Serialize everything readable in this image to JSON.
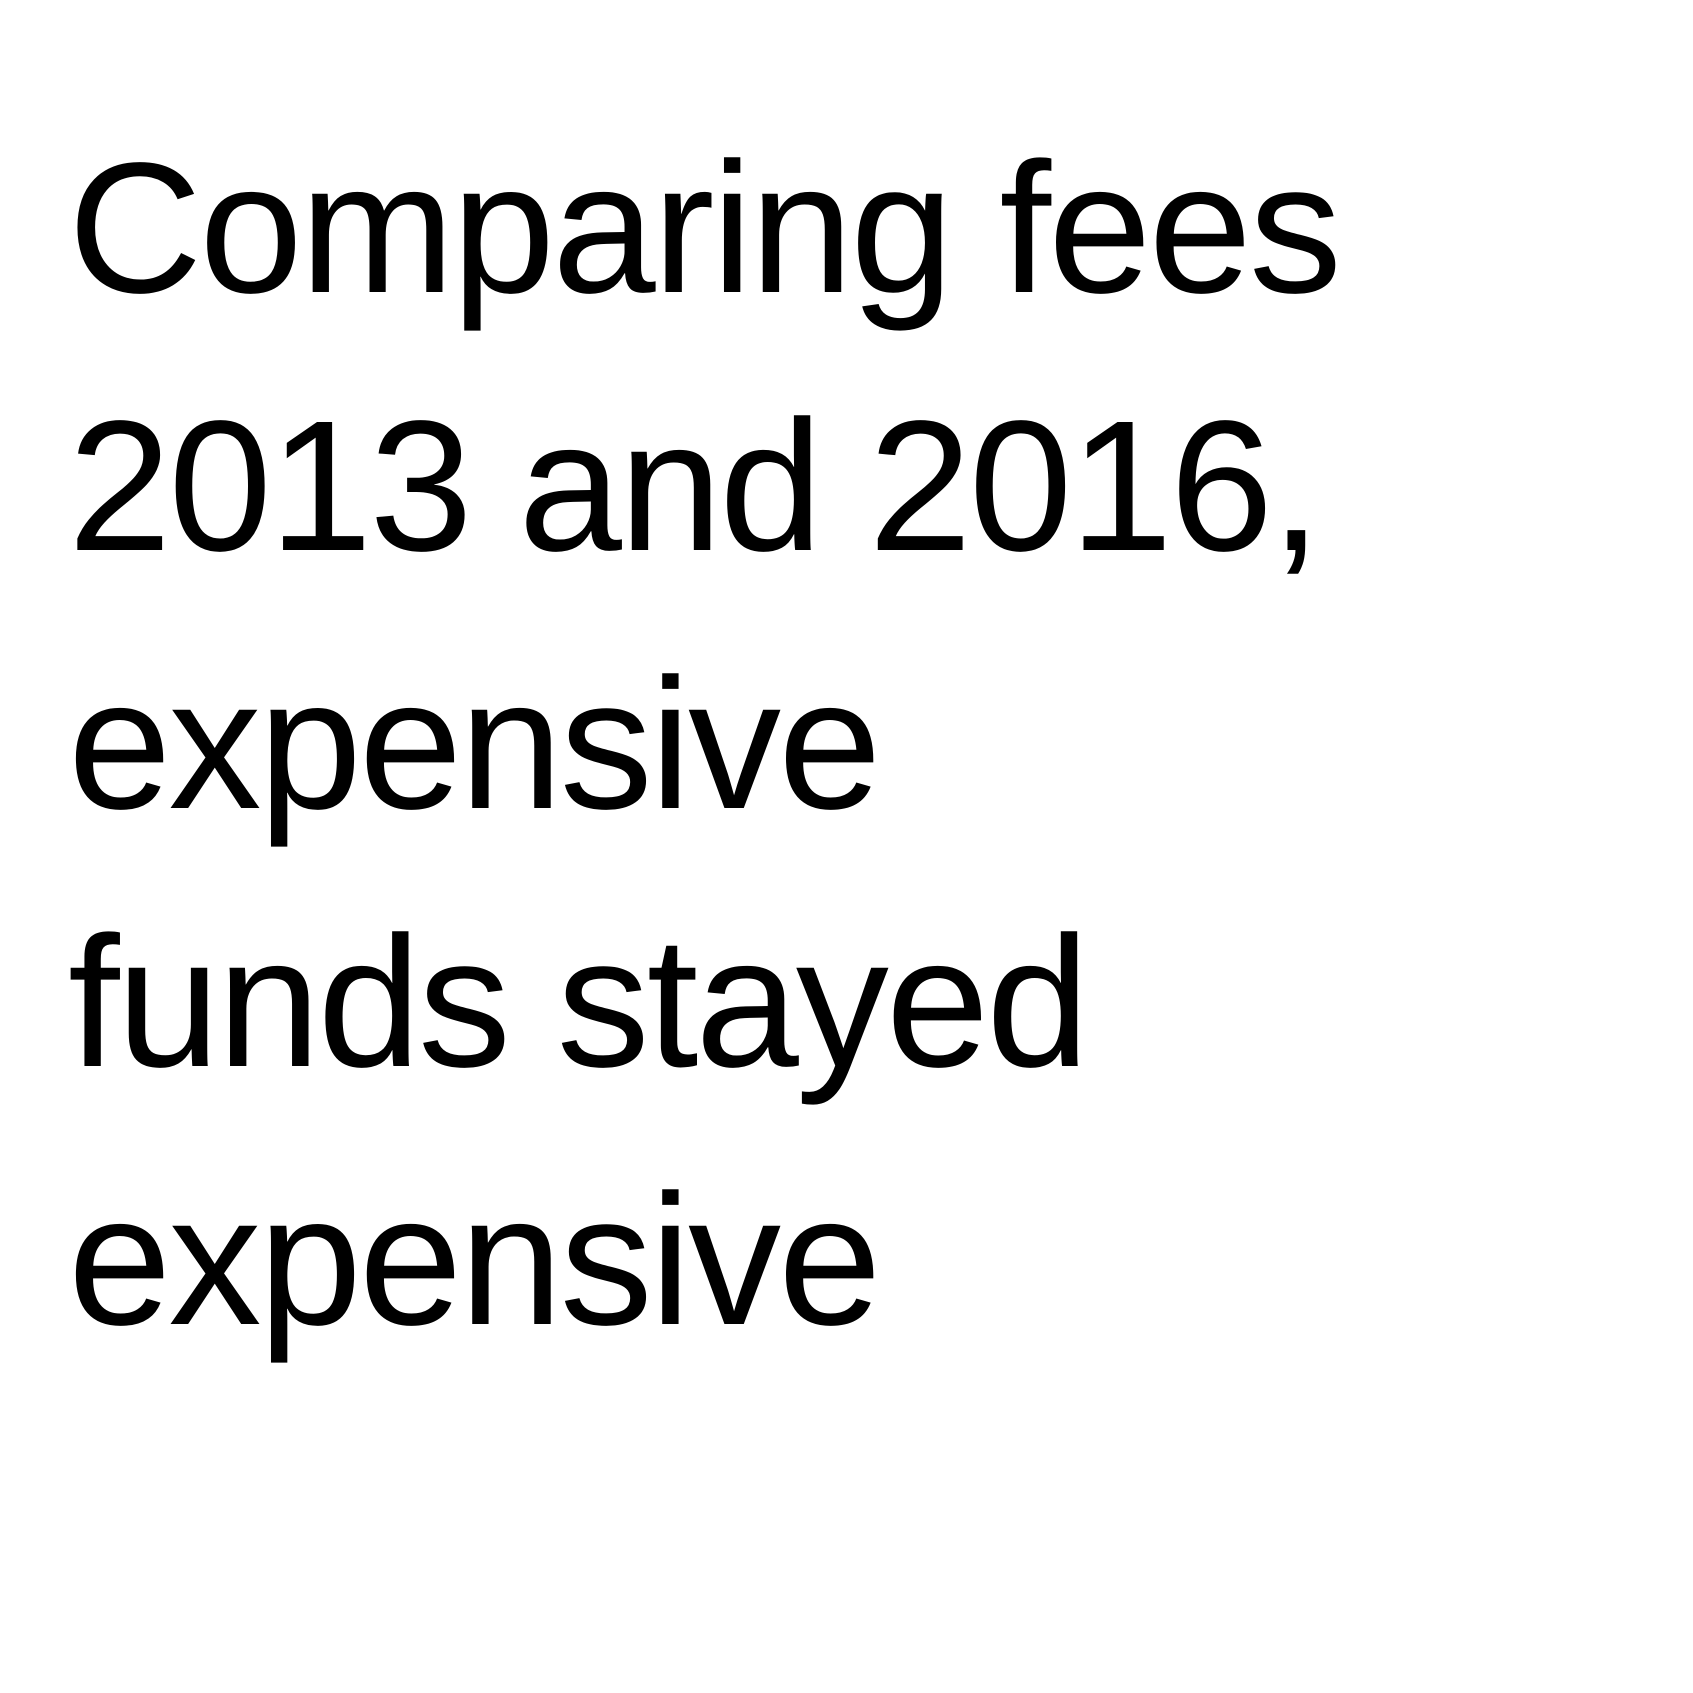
{
  "text": {
    "lines": [
      "Comparing fees",
      "2013 and 2016,",
      "expensive",
      "funds stayed",
      "expensive"
    ]
  },
  "colors": {
    "background": "#ffffff",
    "text": "#000000"
  }
}
